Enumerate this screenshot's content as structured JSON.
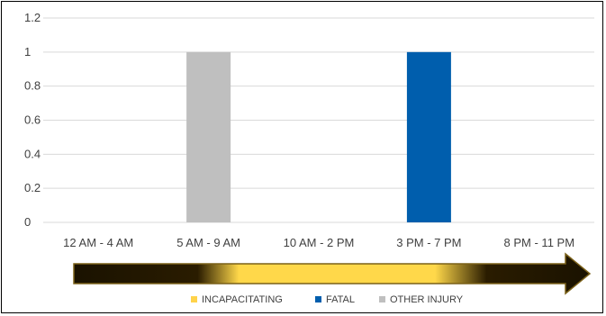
{
  "chart_data": {
    "type": "bar",
    "title": "",
    "xlabel": "",
    "ylabel": "",
    "categories": [
      "12 AM - 4 AM",
      "5 AM - 9 AM",
      "10 AM - 2 PM",
      "3 PM - 7 PM",
      "8 PM - 11 PM"
    ],
    "ylim": [
      0,
      1.2
    ],
    "yticks": [
      "0",
      "0.2",
      "0.4",
      "0.6",
      "0.8",
      "1",
      "1.2"
    ],
    "grid": true,
    "legend_position": "bottom",
    "series": [
      {
        "name": "INCAPACITATING",
        "color": "#FFD34A",
        "values": [
          0,
          0,
          0,
          0,
          0
        ]
      },
      {
        "name": "FATAL",
        "color": "#005EAD",
        "values": [
          0,
          0,
          0,
          1,
          0
        ]
      },
      {
        "name": "OTHER INJURY",
        "color": "#BFBFBF",
        "values": [
          0,
          1,
          0,
          0,
          0
        ]
      }
    ]
  }
}
